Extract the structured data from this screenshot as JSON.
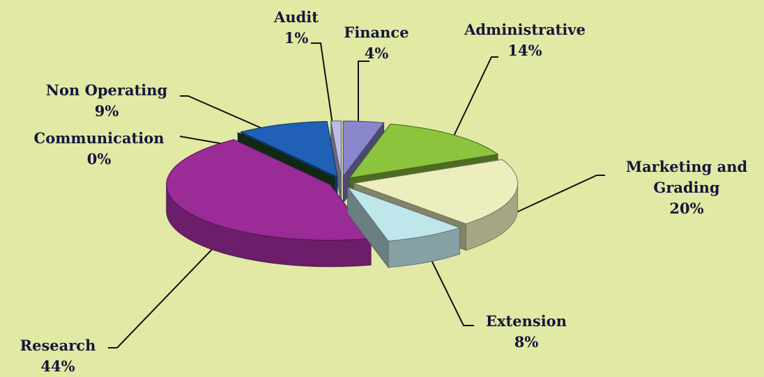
{
  "chart_data": {
    "type": "pie",
    "categories": [
      "Finance",
      "Administrative",
      "Marketing and Grading",
      "Extension",
      "Research",
      "Communication",
      "Non Operating",
      "Audit"
    ],
    "values": [
      4,
      14,
      20,
      8,
      44,
      0,
      9,
      1
    ],
    "value_labels": [
      "4%",
      "14%",
      "20%",
      "8%",
      "44%",
      "0%",
      "9%",
      "1%"
    ],
    "colors": [
      "#8a86cc",
      "#8cc43e",
      "#eceebd",
      "#bfe6ea",
      "#9a2b97",
      "#1d4b22",
      "#2060b6",
      "#bcbce4"
    ]
  }
}
